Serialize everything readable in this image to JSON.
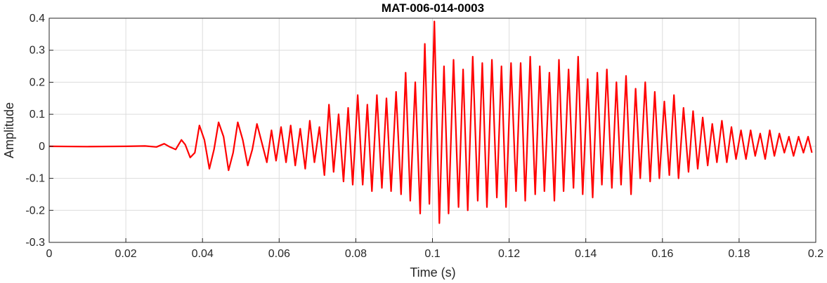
{
  "chart_data": {
    "type": "line",
    "title": "MAT-006-014-0003",
    "xlabel": "Time (s)",
    "ylabel": "Amplitude",
    "xlim": [
      0,
      0.2
    ],
    "ylim": [
      -0.3,
      0.4
    ],
    "x_ticks": [
      0,
      0.02,
      0.04,
      0.06,
      0.08,
      0.1,
      0.12,
      0.14,
      0.16,
      0.18,
      0.2
    ],
    "x_tick_labels": [
      "0",
      "0.02",
      "0.04",
      "0.06",
      "0.08",
      "0.1",
      "0.12",
      "0.14",
      "0.16",
      "0.18",
      "0.2"
    ],
    "y_ticks": [
      -0.3,
      -0.2,
      -0.1,
      0,
      0.1,
      0.2,
      0.3,
      0.4
    ],
    "y_tick_labels": [
      "-0.3",
      "-0.2",
      "-0.1",
      "0",
      "0.1",
      "0.2",
      "0.3",
      "0.4"
    ],
    "grid": true,
    "series": [
      {
        "color": "#ff0000",
        "x": [
          0,
          0.01,
          0.02,
          0.025,
          0.028,
          0.03,
          0.0315,
          0.033,
          0.0345,
          0.0355,
          0.0368,
          0.038,
          0.0392,
          0.0405,
          0.0418,
          0.043,
          0.0442,
          0.0455,
          0.0468,
          0.048,
          0.0492,
          0.0505,
          0.0518,
          0.053,
          0.0542,
          0.0555,
          0.0568,
          0.058,
          0.0592,
          0.0605,
          0.0618,
          0.063,
          0.0642,
          0.0655,
          0.0668,
          0.068,
          0.0692,
          0.0705,
          0.0718,
          0.073,
          0.0742,
          0.0755,
          0.0768,
          0.078,
          0.0792,
          0.0805,
          0.0818,
          0.083,
          0.0842,
          0.0855,
          0.0868,
          0.088,
          0.0892,
          0.0905,
          0.0918,
          0.093,
          0.0942,
          0.0955,
          0.0968,
          0.098,
          0.0992,
          0.1005,
          0.1018,
          0.103,
          0.1042,
          0.1055,
          0.1068,
          0.108,
          0.1092,
          0.1105,
          0.1118,
          0.113,
          0.1142,
          0.1155,
          0.1168,
          0.118,
          0.1192,
          0.1205,
          0.1218,
          0.123,
          0.1242,
          0.1255,
          0.1268,
          0.128,
          0.1292,
          0.1305,
          0.1318,
          0.133,
          0.1342,
          0.1355,
          0.1368,
          0.138,
          0.1392,
          0.1405,
          0.1418,
          0.143,
          0.1442,
          0.1455,
          0.1468,
          0.148,
          0.1492,
          0.1505,
          0.1518,
          0.153,
          0.1542,
          0.1555,
          0.1568,
          0.158,
          0.1592,
          0.1605,
          0.1618,
          0.163,
          0.1642,
          0.1655,
          0.1668,
          0.168,
          0.1692,
          0.1705,
          0.1718,
          0.173,
          0.1742,
          0.1755,
          0.1768,
          0.178,
          0.1792,
          0.1805,
          0.1818,
          0.183,
          0.1842,
          0.1855,
          0.1868,
          0.188,
          0.1892,
          0.1905,
          0.1918,
          0.193,
          0.1942,
          0.1955,
          0.1968,
          0.198,
          0.199
        ],
        "y": [
          0,
          -0.001,
          0,
          0.001,
          -0.002,
          0.008,
          -0.002,
          -0.01,
          0.02,
          0.005,
          -0.035,
          -0.02,
          0.065,
          0.02,
          -0.07,
          -0.01,
          0.075,
          0.03,
          -0.075,
          -0.02,
          0.075,
          0.02,
          -0.06,
          -0.01,
          0.07,
          0.01,
          -0.05,
          0.05,
          -0.045,
          0.06,
          -0.05,
          0.065,
          -0.06,
          0.055,
          -0.07,
          0.08,
          -0.05,
          0.06,
          -0.09,
          0.13,
          -0.08,
          0.1,
          -0.11,
          0.12,
          -0.12,
          0.16,
          -0.12,
          0.13,
          -0.14,
          0.16,
          -0.13,
          0.15,
          -0.14,
          0.17,
          -0.15,
          0.23,
          -0.17,
          0.2,
          -0.21,
          0.32,
          -0.18,
          0.39,
          -0.24,
          0.25,
          -0.21,
          0.27,
          -0.19,
          0.24,
          -0.2,
          0.28,
          -0.17,
          0.26,
          -0.19,
          0.27,
          -0.16,
          0.25,
          -0.19,
          0.26,
          -0.14,
          0.26,
          -0.17,
          0.28,
          -0.15,
          0.25,
          -0.14,
          0.23,
          -0.17,
          0.27,
          -0.14,
          0.24,
          -0.13,
          0.28,
          -0.15,
          0.21,
          -0.16,
          0.23,
          -0.12,
          0.24,
          -0.13,
          0.2,
          -0.12,
          0.22,
          -0.15,
          0.18,
          -0.1,
          0.2,
          -0.11,
          0.17,
          -0.1,
          0.14,
          -0.09,
          0.16,
          -0.1,
          0.12,
          -0.08,
          0.11,
          -0.07,
          0.09,
          -0.06,
          0.07,
          -0.05,
          0.08,
          -0.05,
          0.06,
          -0.04,
          0.05,
          -0.04,
          0.05,
          -0.03,
          0.04,
          -0.04,
          0.05,
          -0.03,
          0.04,
          -0.02,
          0.03,
          -0.03,
          0.03,
          -0.02,
          0.03,
          -0.02
        ]
      }
    ]
  }
}
